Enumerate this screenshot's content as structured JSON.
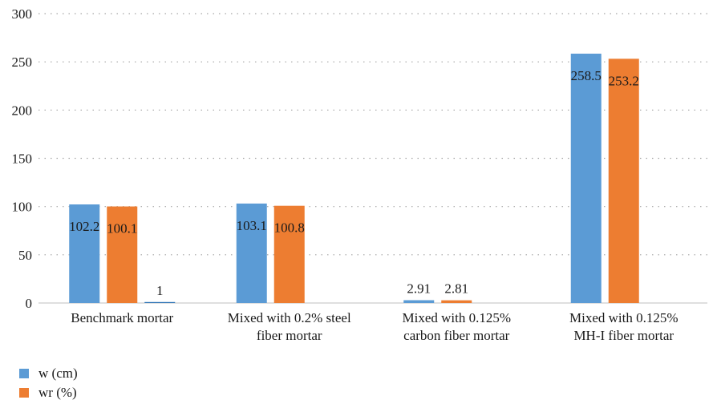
{
  "chart_data": {
    "type": "bar",
    "categories": [
      [
        "Benchmark mortar"
      ],
      [
        "Mixed with 0.2% steel",
        "fiber mortar"
      ],
      [
        "Mixed with 0.125%",
        "carbon fiber mortar"
      ],
      [
        "Mixed with 0.125%",
        "MH-I fiber mortar"
      ]
    ],
    "series": [
      {
        "name": "w (cm)",
        "color": "#5b9bd5",
        "values": [
          102.2,
          103.1,
          2.91,
          258.5
        ],
        "labels": [
          "102.2",
          "103.1",
          "2.91",
          "258.5"
        ]
      },
      {
        "name": "wr (%)",
        "color": "#ed7d31",
        "values": [
          100.1,
          100.8,
          2.81,
          253.2
        ],
        "labels": [
          "100.1",
          "100.8",
          "2.81",
          "253.2"
        ]
      },
      {
        "name": "",
        "color": "#2e75b6",
        "values": [
          1,
          null,
          null,
          null
        ],
        "labels": [
          "1",
          null,
          null,
          null
        ]
      }
    ],
    "ylim": [
      0,
      300
    ],
    "yticks": [
      0,
      50,
      100,
      150,
      200,
      250,
      300
    ],
    "grid": true,
    "legend_position": "bottom-left",
    "title": "",
    "xlabel": "",
    "ylabel": ""
  },
  "legend": {
    "items": [
      {
        "label": "w (cm)",
        "color": "#5b9bd5"
      },
      {
        "label": "wr (%)",
        "color": "#ed7d31"
      }
    ]
  }
}
